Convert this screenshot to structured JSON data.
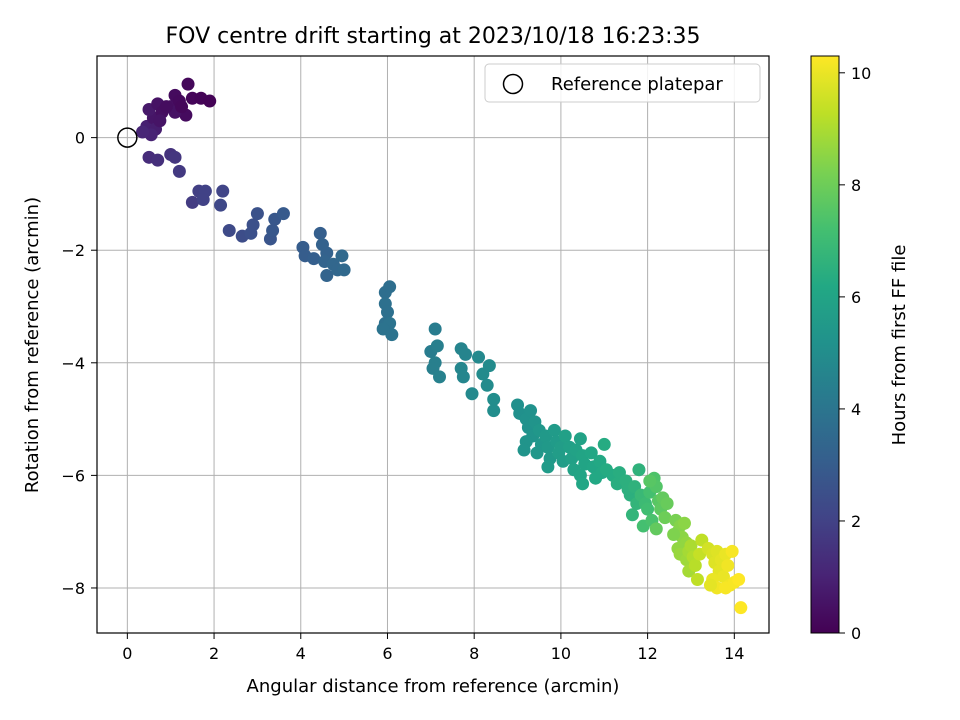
{
  "chart_data": {
    "type": "scatter",
    "title": "FOV centre drift starting at 2023/10/18 16:23:35",
    "xlabel": "Angular distance from reference (arcmin)",
    "ylabel": "Rotation from reference (arcmin)",
    "xlim": [
      -0.7,
      14.8
    ],
    "ylim": [
      -8.8,
      1.45
    ],
    "xticks": [
      0,
      2,
      4,
      6,
      8,
      10,
      12,
      14
    ],
    "yticks": [
      -8,
      -6,
      -4,
      -2,
      0
    ],
    "xtick_labels": [
      "0",
      "2",
      "4",
      "6",
      "8",
      "10",
      "12",
      "14"
    ],
    "ytick_labels": [
      "−8",
      "−6",
      "−4",
      "−2",
      "0"
    ],
    "grid": true,
    "legend": {
      "placement": "top-right",
      "entries": [
        {
          "label": "Reference platepar",
          "marker": "open-circle",
          "color": "#000000"
        }
      ]
    },
    "reference_point": {
      "x": 0,
      "y": 0
    },
    "colorbar": {
      "label": "Hours from first FF file",
      "colormap": "viridis",
      "range": [
        0,
        10.3
      ],
      "ticks": [
        0,
        2,
        4,
        6,
        8,
        10
      ],
      "tick_labels": [
        "0",
        "2",
        "4",
        "6",
        "8",
        "10"
      ]
    },
    "series": [
      {
        "points": [
          [
            0.45,
            0.2,
            0.9
          ],
          [
            0.6,
            0.35,
            0.6
          ],
          [
            0.5,
            0.5,
            0.7
          ],
          [
            0.7,
            0.6,
            0.5
          ],
          [
            0.8,
            0.45,
            0.4
          ],
          [
            0.65,
            0.15,
            0.85
          ],
          [
            0.55,
            0.05,
            1.0
          ],
          [
            1.0,
            0.55,
            0.4
          ],
          [
            1.1,
            0.75,
            0.3
          ],
          [
            1.2,
            0.65,
            0.25
          ],
          [
            1.4,
            0.95,
            0.2
          ],
          [
            1.5,
            0.7,
            0.15
          ],
          [
            1.35,
            0.4,
            0.3
          ],
          [
            1.1,
            0.45,
            0.5
          ],
          [
            1.7,
            0.7,
            0.1
          ],
          [
            1.9,
            0.65,
            0.05
          ],
          [
            0.35,
            0.1,
            1.1
          ],
          [
            0.75,
            0.3,
            0.55
          ],
          [
            0.9,
            0.55,
            0.35
          ],
          [
            1.25,
            0.55,
            0.2
          ],
          [
            0.5,
            -0.35,
            1.3
          ],
          [
            0.7,
            -0.4,
            1.4
          ],
          [
            1.0,
            -0.3,
            1.5
          ],
          [
            1.1,
            -0.35,
            1.6
          ],
          [
            1.2,
            -0.6,
            1.7
          ],
          [
            1.5,
            -1.15,
            1.8
          ],
          [
            1.65,
            -0.95,
            1.9
          ],
          [
            1.8,
            -0.95,
            2.0
          ],
          [
            1.75,
            -1.1,
            2.0
          ],
          [
            2.2,
            -0.95,
            2.1
          ],
          [
            2.15,
            -1.2,
            2.2
          ],
          [
            2.35,
            -1.65,
            2.3
          ],
          [
            2.65,
            -1.75,
            2.4
          ],
          [
            2.85,
            -1.7,
            2.5
          ],
          [
            2.9,
            -1.55,
            2.5
          ],
          [
            3.0,
            -1.35,
            2.6
          ],
          [
            3.3,
            -1.8,
            2.7
          ],
          [
            3.35,
            -1.65,
            2.8
          ],
          [
            3.4,
            -1.45,
            2.8
          ],
          [
            3.6,
            -1.35,
            2.9
          ],
          [
            4.05,
            -1.95,
            3.0
          ],
          [
            4.1,
            -2.1,
            3.0
          ],
          [
            4.3,
            -2.15,
            3.1
          ],
          [
            4.45,
            -1.7,
            3.1
          ],
          [
            4.5,
            -1.9,
            3.2
          ],
          [
            4.6,
            -2.05,
            3.2
          ],
          [
            4.55,
            -2.2,
            3.3
          ],
          [
            4.6,
            -2.45,
            3.3
          ],
          [
            4.75,
            -2.25,
            3.4
          ],
          [
            4.85,
            -2.35,
            3.4
          ],
          [
            4.95,
            -2.1,
            3.5
          ],
          [
            5.0,
            -2.35,
            3.5
          ],
          [
            5.95,
            -2.75,
            3.7
          ],
          [
            6.05,
            -2.65,
            3.7
          ],
          [
            5.95,
            -2.95,
            3.8
          ],
          [
            6.0,
            -3.1,
            3.8
          ],
          [
            5.95,
            -3.3,
            3.8
          ],
          [
            6.05,
            -3.3,
            3.9
          ],
          [
            5.9,
            -3.4,
            3.9
          ],
          [
            6.1,
            -3.5,
            3.9
          ],
          [
            7.0,
            -3.8,
            4.3
          ],
          [
            7.1,
            -3.4,
            4.3
          ],
          [
            7.15,
            -3.7,
            4.4
          ],
          [
            7.1,
            -4.0,
            4.4
          ],
          [
            7.05,
            -4.1,
            4.4
          ],
          [
            7.2,
            -4.25,
            4.5
          ],
          [
            7.7,
            -3.75,
            4.6
          ],
          [
            7.8,
            -3.85,
            4.6
          ],
          [
            7.7,
            -4.1,
            4.7
          ],
          [
            7.75,
            -4.25,
            4.7
          ],
          [
            7.95,
            -4.55,
            4.8
          ],
          [
            8.1,
            -3.9,
            4.8
          ],
          [
            8.2,
            -4.2,
            4.9
          ],
          [
            8.35,
            -4.05,
            4.9
          ],
          [
            8.3,
            -4.4,
            4.9
          ],
          [
            8.45,
            -4.65,
            5.0
          ],
          [
            8.45,
            -4.85,
            5.0
          ],
          [
            9.0,
            -4.75,
            5.1
          ],
          [
            9.05,
            -4.9,
            5.1
          ],
          [
            9.2,
            -5.0,
            5.2
          ],
          [
            9.3,
            -4.85,
            5.2
          ],
          [
            9.25,
            -5.15,
            5.2
          ],
          [
            9.4,
            -5.05,
            5.3
          ],
          [
            9.35,
            -5.3,
            5.3
          ],
          [
            9.2,
            -5.4,
            5.3
          ],
          [
            9.15,
            -5.55,
            5.3
          ],
          [
            9.5,
            -5.2,
            5.4
          ],
          [
            9.55,
            -5.45,
            5.4
          ],
          [
            9.45,
            -5.6,
            5.4
          ],
          [
            9.65,
            -5.3,
            5.5
          ],
          [
            9.7,
            -5.5,
            5.5
          ],
          [
            9.75,
            -5.7,
            5.5
          ],
          [
            9.7,
            -5.85,
            5.6
          ],
          [
            9.85,
            -5.2,
            5.6
          ],
          [
            9.9,
            -5.4,
            5.6
          ],
          [
            9.95,
            -5.6,
            5.7
          ],
          [
            10.0,
            -5.5,
            5.7
          ],
          [
            10.05,
            -5.75,
            5.7
          ],
          [
            10.1,
            -5.3,
            5.8
          ],
          [
            10.2,
            -5.5,
            5.8
          ],
          [
            10.25,
            -5.7,
            5.8
          ],
          [
            10.3,
            -5.9,
            5.9
          ],
          [
            10.35,
            -5.55,
            5.9
          ],
          [
            10.45,
            -5.35,
            5.9
          ],
          [
            10.5,
            -5.65,
            6.0
          ],
          [
            10.55,
            -5.8,
            6.0
          ],
          [
            10.45,
            -6.0,
            6.0
          ],
          [
            10.5,
            -6.15,
            6.1
          ],
          [
            10.7,
            -5.6,
            6.1
          ],
          [
            10.75,
            -5.85,
            6.1
          ],
          [
            10.8,
            -6.05,
            6.2
          ],
          [
            10.9,
            -5.75,
            6.2
          ],
          [
            10.95,
            -5.95,
            6.2
          ],
          [
            11.05,
            -5.9,
            6.3
          ],
          [
            11.0,
            -5.45,
            6.3
          ],
          [
            11.2,
            -6.0,
            6.3
          ],
          [
            11.3,
            -6.15,
            6.4
          ],
          [
            11.35,
            -5.95,
            6.4
          ],
          [
            11.5,
            -6.1,
            6.5
          ],
          [
            11.6,
            -6.35,
            6.5
          ],
          [
            11.55,
            -6.25,
            6.5
          ],
          [
            11.8,
            -5.9,
            6.6
          ],
          [
            11.7,
            -6.2,
            6.6
          ],
          [
            11.75,
            -6.5,
            6.7
          ],
          [
            11.65,
            -6.7,
            6.7
          ],
          [
            11.85,
            -6.35,
            6.9
          ],
          [
            11.95,
            -6.5,
            7.0
          ],
          [
            12.0,
            -6.6,
            7.1
          ],
          [
            12.05,
            -6.3,
            7.2
          ],
          [
            11.9,
            -6.9,
            7.2
          ],
          [
            12.1,
            -6.8,
            7.3
          ],
          [
            12.15,
            -6.05,
            7.4
          ],
          [
            12.2,
            -6.2,
            7.5
          ],
          [
            12.25,
            -6.45,
            7.6
          ],
          [
            12.3,
            -6.6,
            7.7
          ],
          [
            12.35,
            -6.4,
            7.8
          ],
          [
            12.45,
            -6.5,
            7.9
          ],
          [
            12.4,
            -6.75,
            8.0
          ],
          [
            12.2,
            -6.95,
            7.8
          ],
          [
            12.05,
            -6.1,
            7.6
          ],
          [
            12.65,
            -6.8,
            8.2
          ],
          [
            12.7,
            -7.0,
            8.3
          ],
          [
            12.75,
            -6.9,
            8.4
          ],
          [
            12.8,
            -7.1,
            8.5
          ],
          [
            12.85,
            -6.85,
            8.5
          ],
          [
            12.9,
            -7.2,
            8.6
          ],
          [
            12.6,
            -7.05,
            8.3
          ],
          [
            12.7,
            -7.3,
            8.6
          ],
          [
            12.75,
            -7.4,
            8.7
          ],
          [
            12.9,
            -7.5,
            8.8
          ],
          [
            12.95,
            -7.35,
            8.9
          ],
          [
            13.0,
            -7.25,
            9.0
          ],
          [
            12.95,
            -7.7,
            8.9
          ],
          [
            13.05,
            -7.45,
            9.1
          ],
          [
            13.1,
            -7.6,
            9.2
          ],
          [
            13.15,
            -7.85,
            9.3
          ],
          [
            13.2,
            -7.4,
            9.4
          ],
          [
            13.25,
            -7.15,
            9.3
          ],
          [
            13.4,
            -7.3,
            9.6
          ],
          [
            13.5,
            -7.4,
            9.7
          ],
          [
            13.55,
            -7.55,
            9.8
          ],
          [
            13.6,
            -7.35,
            9.8
          ],
          [
            13.65,
            -7.7,
            9.9
          ],
          [
            13.7,
            -7.5,
            9.9
          ],
          [
            13.75,
            -7.8,
            10.0
          ],
          [
            13.8,
            -7.4,
            10.0
          ],
          [
            13.85,
            -7.6,
            10.1
          ],
          [
            13.9,
            -7.95,
            10.1
          ],
          [
            13.95,
            -7.35,
            10.2
          ],
          [
            13.5,
            -7.85,
            10.0
          ],
          [
            13.6,
            -8.0,
            10.1
          ],
          [
            13.8,
            -8.0,
            10.2
          ],
          [
            14.0,
            -7.9,
            10.2
          ],
          [
            14.1,
            -7.85,
            10.3
          ],
          [
            14.15,
            -8.35,
            10.3
          ],
          [
            13.45,
            -7.95,
            9.9
          ]
        ]
      }
    ]
  }
}
